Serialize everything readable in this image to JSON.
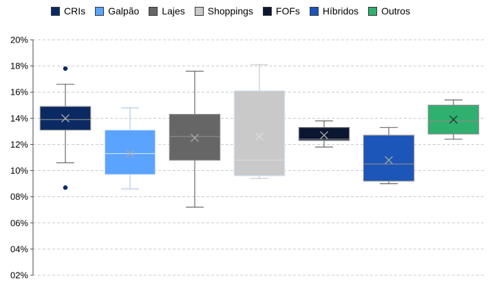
{
  "chart_data": {
    "type": "box",
    "legend_position": "top",
    "grid": true,
    "ylim": [
      0.02,
      0.2
    ],
    "y_ticks": [
      "20%",
      "18%",
      "16%",
      "14%",
      "12%",
      "10%",
      "08%",
      "06%",
      "04%",
      "02%"
    ],
    "series": [
      {
        "name": "CRIs",
        "color": "#0b2a63",
        "min": 0.106,
        "q1": 0.131,
        "median": 0.139,
        "q3": 0.149,
        "max": 0.166,
        "mean": 0.14,
        "outliers": [
          0.178,
          0.087
        ]
      },
      {
        "name": "Galpão",
        "color": "#5aa3ff",
        "min": 0.086,
        "q1": 0.097,
        "median": 0.113,
        "q3": 0.131,
        "max": 0.148,
        "mean": 0.113,
        "outliers": []
      },
      {
        "name": "Lajes",
        "color": "#666666",
        "min": 0.072,
        "q1": 0.108,
        "median": 0.126,
        "q3": 0.143,
        "max": 0.176,
        "mean": 0.125,
        "outliers": []
      },
      {
        "name": "Shoppings",
        "color": "#c9c9c9",
        "min": 0.094,
        "q1": 0.096,
        "median": 0.108,
        "q3": 0.161,
        "max": 0.181,
        "mean": 0.126,
        "outliers": []
      },
      {
        "name": "FOFs",
        "color": "#0b1730",
        "min": 0.118,
        "q1": 0.123,
        "median": 0.124,
        "q3": 0.133,
        "max": 0.138,
        "mean": 0.127,
        "outliers": []
      },
      {
        "name": "Híbridos",
        "color": "#1b56b8",
        "min": 0.09,
        "q1": 0.092,
        "median": 0.105,
        "q3": 0.127,
        "max": 0.133,
        "mean": 0.108,
        "outliers": []
      },
      {
        "name": "Outros",
        "color": "#2fb06f",
        "min": 0.124,
        "q1": 0.128,
        "median": 0.138,
        "q3": 0.15,
        "max": 0.154,
        "mean": 0.139,
        "outliers": []
      }
    ]
  }
}
